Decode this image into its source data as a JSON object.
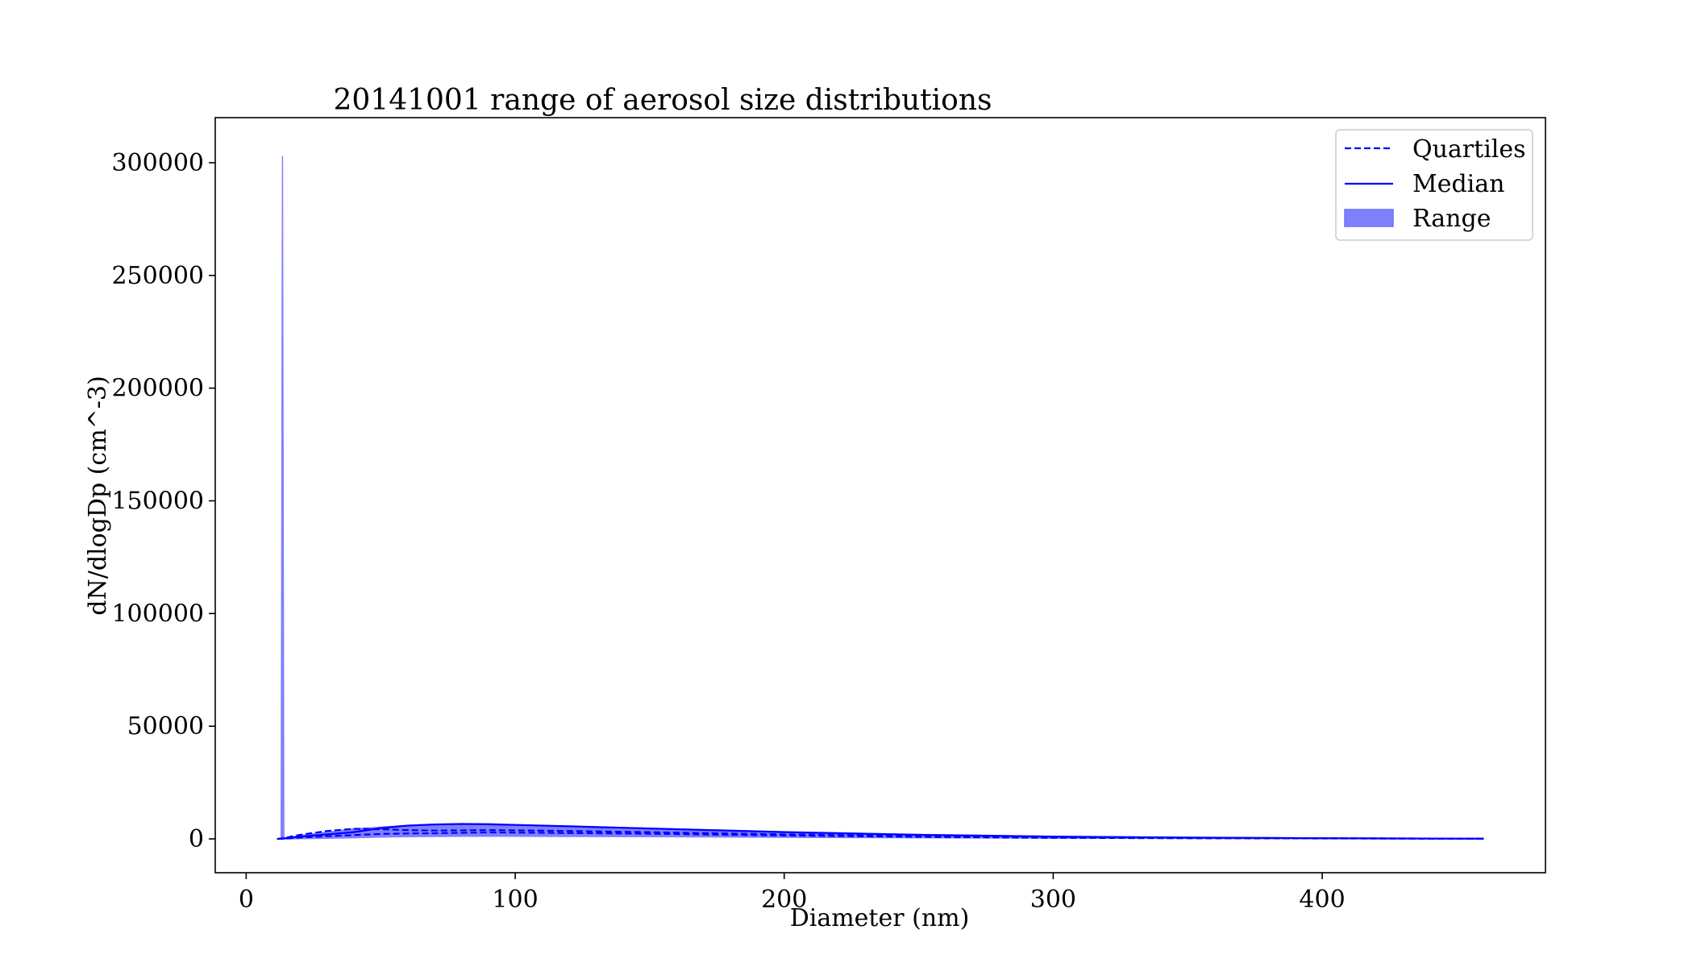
{
  "chart_data": {
    "type": "line",
    "title": "20141001 range of aerosol size distributions",
    "xlabel": "Diameter (nm)",
    "ylabel": "dN/dlogDp (cm^-3)",
    "xlim": [
      -11.5,
      483
    ],
    "ylim": [
      -15000,
      320000
    ],
    "xticks": [
      0,
      100,
      200,
      300,
      400
    ],
    "yticks": [
      0,
      50000,
      100000,
      150000,
      200000,
      250000,
      300000
    ],
    "xtick_labels": [
      "0",
      "100",
      "200",
      "300",
      "400"
    ],
    "ytick_labels": [
      "0",
      "50000",
      "100000",
      "150000",
      "200000",
      "250000",
      "300000"
    ],
    "grid": false,
    "legend_position": "top-right",
    "legend": [
      {
        "label": "Quartiles",
        "style": "dashed-line"
      },
      {
        "label": "Median",
        "style": "solid-line"
      },
      {
        "label": "Range",
        "style": "filled-area"
      }
    ],
    "colors": {
      "line": "#0000ff",
      "fill": "#8080ff"
    },
    "x": [
      11.5,
      13,
      13.5,
      14,
      14.5,
      15,
      20,
      30,
      40,
      50,
      60,
      70,
      80,
      90,
      100,
      120,
      150,
      200,
      250,
      300,
      350,
      400,
      460
    ],
    "series": [
      {
        "name": "Range",
        "kind": "band",
        "lower": [
          0,
          0,
          0,
          0,
          0,
          0,
          100,
          300,
          500,
          800,
          1000,
          1100,
          1200,
          1200,
          1200,
          1100,
          1000,
          700,
          500,
          300,
          200,
          100,
          50
        ],
        "upper": [
          0,
          0,
          303000,
          0,
          300,
          400,
          1500,
          3000,
          4500,
          5200,
          6000,
          6500,
          6800,
          6700,
          6300,
          5600,
          4800,
          3200,
          2000,
          1200,
          700,
          400,
          200
        ]
      },
      {
        "name": "Quartiles",
        "kind": "quartile-upper",
        "values": [
          0,
          200,
          300,
          400,
          500,
          600,
          1800,
          3500,
          4500,
          4300,
          3900,
          3700,
          3800,
          3900,
          3800,
          3500,
          3000,
          2000,
          1300,
          800,
          500,
          300,
          100
        ]
      },
      {
        "name": "Quartiles",
        "kind": "quartile-lower",
        "values": [
          0,
          50,
          80,
          100,
          150,
          200,
          600,
          1200,
          1700,
          2200,
          2400,
          2500,
          2700,
          2900,
          2800,
          2600,
          2300,
          1500,
          900,
          500,
          300,
          200,
          50
        ]
      },
      {
        "name": "Median",
        "kind": "median",
        "values": [
          0,
          100,
          150,
          200,
          300,
          400,
          1000,
          2000,
          3000,
          4800,
          5900,
          6400,
          6600,
          6500,
          6200,
          5600,
          4600,
          3000,
          1800,
          1000,
          600,
          300,
          100
        ]
      }
    ]
  }
}
